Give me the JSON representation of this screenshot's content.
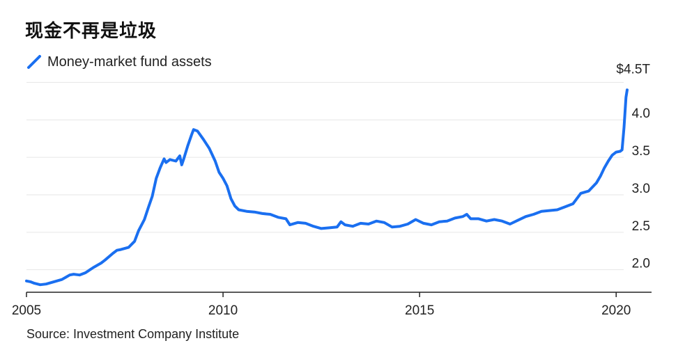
{
  "title": "现金不再是垃圾",
  "source": "Source: Investment Company Institute",
  "colors": {
    "series": "#1a6ff0",
    "grid": "#e6e6e6",
    "axis": "#222222"
  },
  "chart_data": {
    "type": "line",
    "title": "现金不再是垃圾",
    "xlabel": "",
    "ylabel": "",
    "legend": "top-left",
    "grid": true,
    "xlim": [
      2005.0,
      2020.9
    ],
    "ylim": [
      1.7,
      4.55
    ],
    "x_ticks": [
      {
        "value": 2005,
        "label": "2005"
      },
      {
        "value": 2010,
        "label": "2010"
      },
      {
        "value": 2015,
        "label": "2015"
      },
      {
        "value": 2020,
        "label": "2020"
      }
    ],
    "y_ticks": [
      {
        "value": 4.5,
        "label": "$4.5T"
      },
      {
        "value": 4.0,
        "label": "4.0"
      },
      {
        "value": 3.5,
        "label": "3.5"
      },
      {
        "value": 3.0,
        "label": "3.0"
      },
      {
        "value": 2.5,
        "label": "2.5"
      },
      {
        "value": 2.0,
        "label": "2.0"
      }
    ],
    "series": [
      {
        "name": "Money-market fund assets",
        "points": [
          [
            2005.0,
            1.85
          ],
          [
            2005.1,
            1.84
          ],
          [
            2005.2,
            1.82
          ],
          [
            2005.35,
            1.8
          ],
          [
            2005.5,
            1.81
          ],
          [
            2005.7,
            1.84
          ],
          [
            2005.9,
            1.87
          ],
          [
            2006.0,
            1.9
          ],
          [
            2006.1,
            1.93
          ],
          [
            2006.2,
            1.94
          ],
          [
            2006.35,
            1.93
          ],
          [
            2006.5,
            1.96
          ],
          [
            2006.7,
            2.03
          ],
          [
            2006.9,
            2.09
          ],
          [
            2007.0,
            2.13
          ],
          [
            2007.2,
            2.22
          ],
          [
            2007.3,
            2.26
          ],
          [
            2007.4,
            2.27
          ],
          [
            2007.6,
            2.3
          ],
          [
            2007.75,
            2.38
          ],
          [
            2007.85,
            2.52
          ],
          [
            2008.0,
            2.67
          ],
          [
            2008.1,
            2.83
          ],
          [
            2008.2,
            2.98
          ],
          [
            2008.3,
            3.22
          ],
          [
            2008.4,
            3.36
          ],
          [
            2008.5,
            3.48
          ],
          [
            2008.55,
            3.43
          ],
          [
            2008.65,
            3.47
          ],
          [
            2008.8,
            3.45
          ],
          [
            2008.9,
            3.52
          ],
          [
            2008.95,
            3.4
          ],
          [
            2009.0,
            3.48
          ],
          [
            2009.1,
            3.65
          ],
          [
            2009.2,
            3.8
          ],
          [
            2009.25,
            3.87
          ],
          [
            2009.35,
            3.85
          ],
          [
            2009.5,
            3.74
          ],
          [
            2009.65,
            3.62
          ],
          [
            2009.8,
            3.45
          ],
          [
            2009.9,
            3.3
          ],
          [
            2010.0,
            3.22
          ],
          [
            2010.1,
            3.12
          ],
          [
            2010.2,
            2.95
          ],
          [
            2010.3,
            2.85
          ],
          [
            2010.4,
            2.8
          ],
          [
            2010.6,
            2.78
          ],
          [
            2010.8,
            2.77
          ],
          [
            2011.0,
            2.75
          ],
          [
            2011.2,
            2.74
          ],
          [
            2011.4,
            2.7
          ],
          [
            2011.6,
            2.68
          ],
          [
            2011.7,
            2.6
          ],
          [
            2011.9,
            2.63
          ],
          [
            2012.1,
            2.62
          ],
          [
            2012.3,
            2.58
          ],
          [
            2012.5,
            2.55
          ],
          [
            2012.7,
            2.56
          ],
          [
            2012.9,
            2.57
          ],
          [
            2013.0,
            2.64
          ],
          [
            2013.1,
            2.6
          ],
          [
            2013.3,
            2.58
          ],
          [
            2013.5,
            2.62
          ],
          [
            2013.7,
            2.61
          ],
          [
            2013.9,
            2.65
          ],
          [
            2014.1,
            2.63
          ],
          [
            2014.3,
            2.57
          ],
          [
            2014.5,
            2.58
          ],
          [
            2014.7,
            2.61
          ],
          [
            2014.9,
            2.67
          ],
          [
            2015.1,
            2.62
          ],
          [
            2015.3,
            2.6
          ],
          [
            2015.5,
            2.64
          ],
          [
            2015.7,
            2.65
          ],
          [
            2015.9,
            2.69
          ],
          [
            2016.1,
            2.71
          ],
          [
            2016.2,
            2.74
          ],
          [
            2016.3,
            2.68
          ],
          [
            2016.5,
            2.68
          ],
          [
            2016.7,
            2.65
          ],
          [
            2016.9,
            2.67
          ],
          [
            2017.1,
            2.65
          ],
          [
            2017.3,
            2.61
          ],
          [
            2017.5,
            2.66
          ],
          [
            2017.7,
            2.71
          ],
          [
            2017.9,
            2.74
          ],
          [
            2018.1,
            2.78
          ],
          [
            2018.3,
            2.79
          ],
          [
            2018.5,
            2.8
          ],
          [
            2018.7,
            2.84
          ],
          [
            2018.9,
            2.88
          ],
          [
            2019.0,
            2.95
          ],
          [
            2019.1,
            3.02
          ],
          [
            2019.3,
            3.05
          ],
          [
            2019.5,
            3.16
          ],
          [
            2019.6,
            3.25
          ],
          [
            2019.7,
            3.36
          ],
          [
            2019.8,
            3.45
          ],
          [
            2019.9,
            3.53
          ],
          [
            2020.0,
            3.57
          ],
          [
            2020.1,
            3.58
          ],
          [
            2020.15,
            3.6
          ],
          [
            2020.2,
            3.9
          ],
          [
            2020.25,
            4.3
          ],
          [
            2020.28,
            4.4
          ]
        ]
      }
    ]
  }
}
